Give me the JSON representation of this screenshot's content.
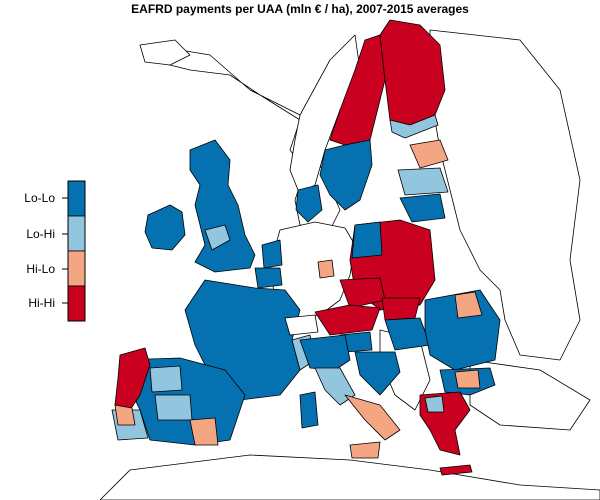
{
  "title": "EAFRD payments per UAA (mln € / ha), 2007-2015 averages",
  "legend": {
    "items": [
      {
        "label": "Lo-Lo",
        "color": "#0571b0"
      },
      {
        "label": "Lo-Hi",
        "color": "#92c5de"
      },
      {
        "label": "Hi-Lo",
        "color": "#f4a582"
      },
      {
        "label": "Hi-Hi",
        "color": "#ca0020"
      }
    ]
  },
  "colors": {
    "no_data": "#ffffff",
    "outline": "#000000"
  }
}
